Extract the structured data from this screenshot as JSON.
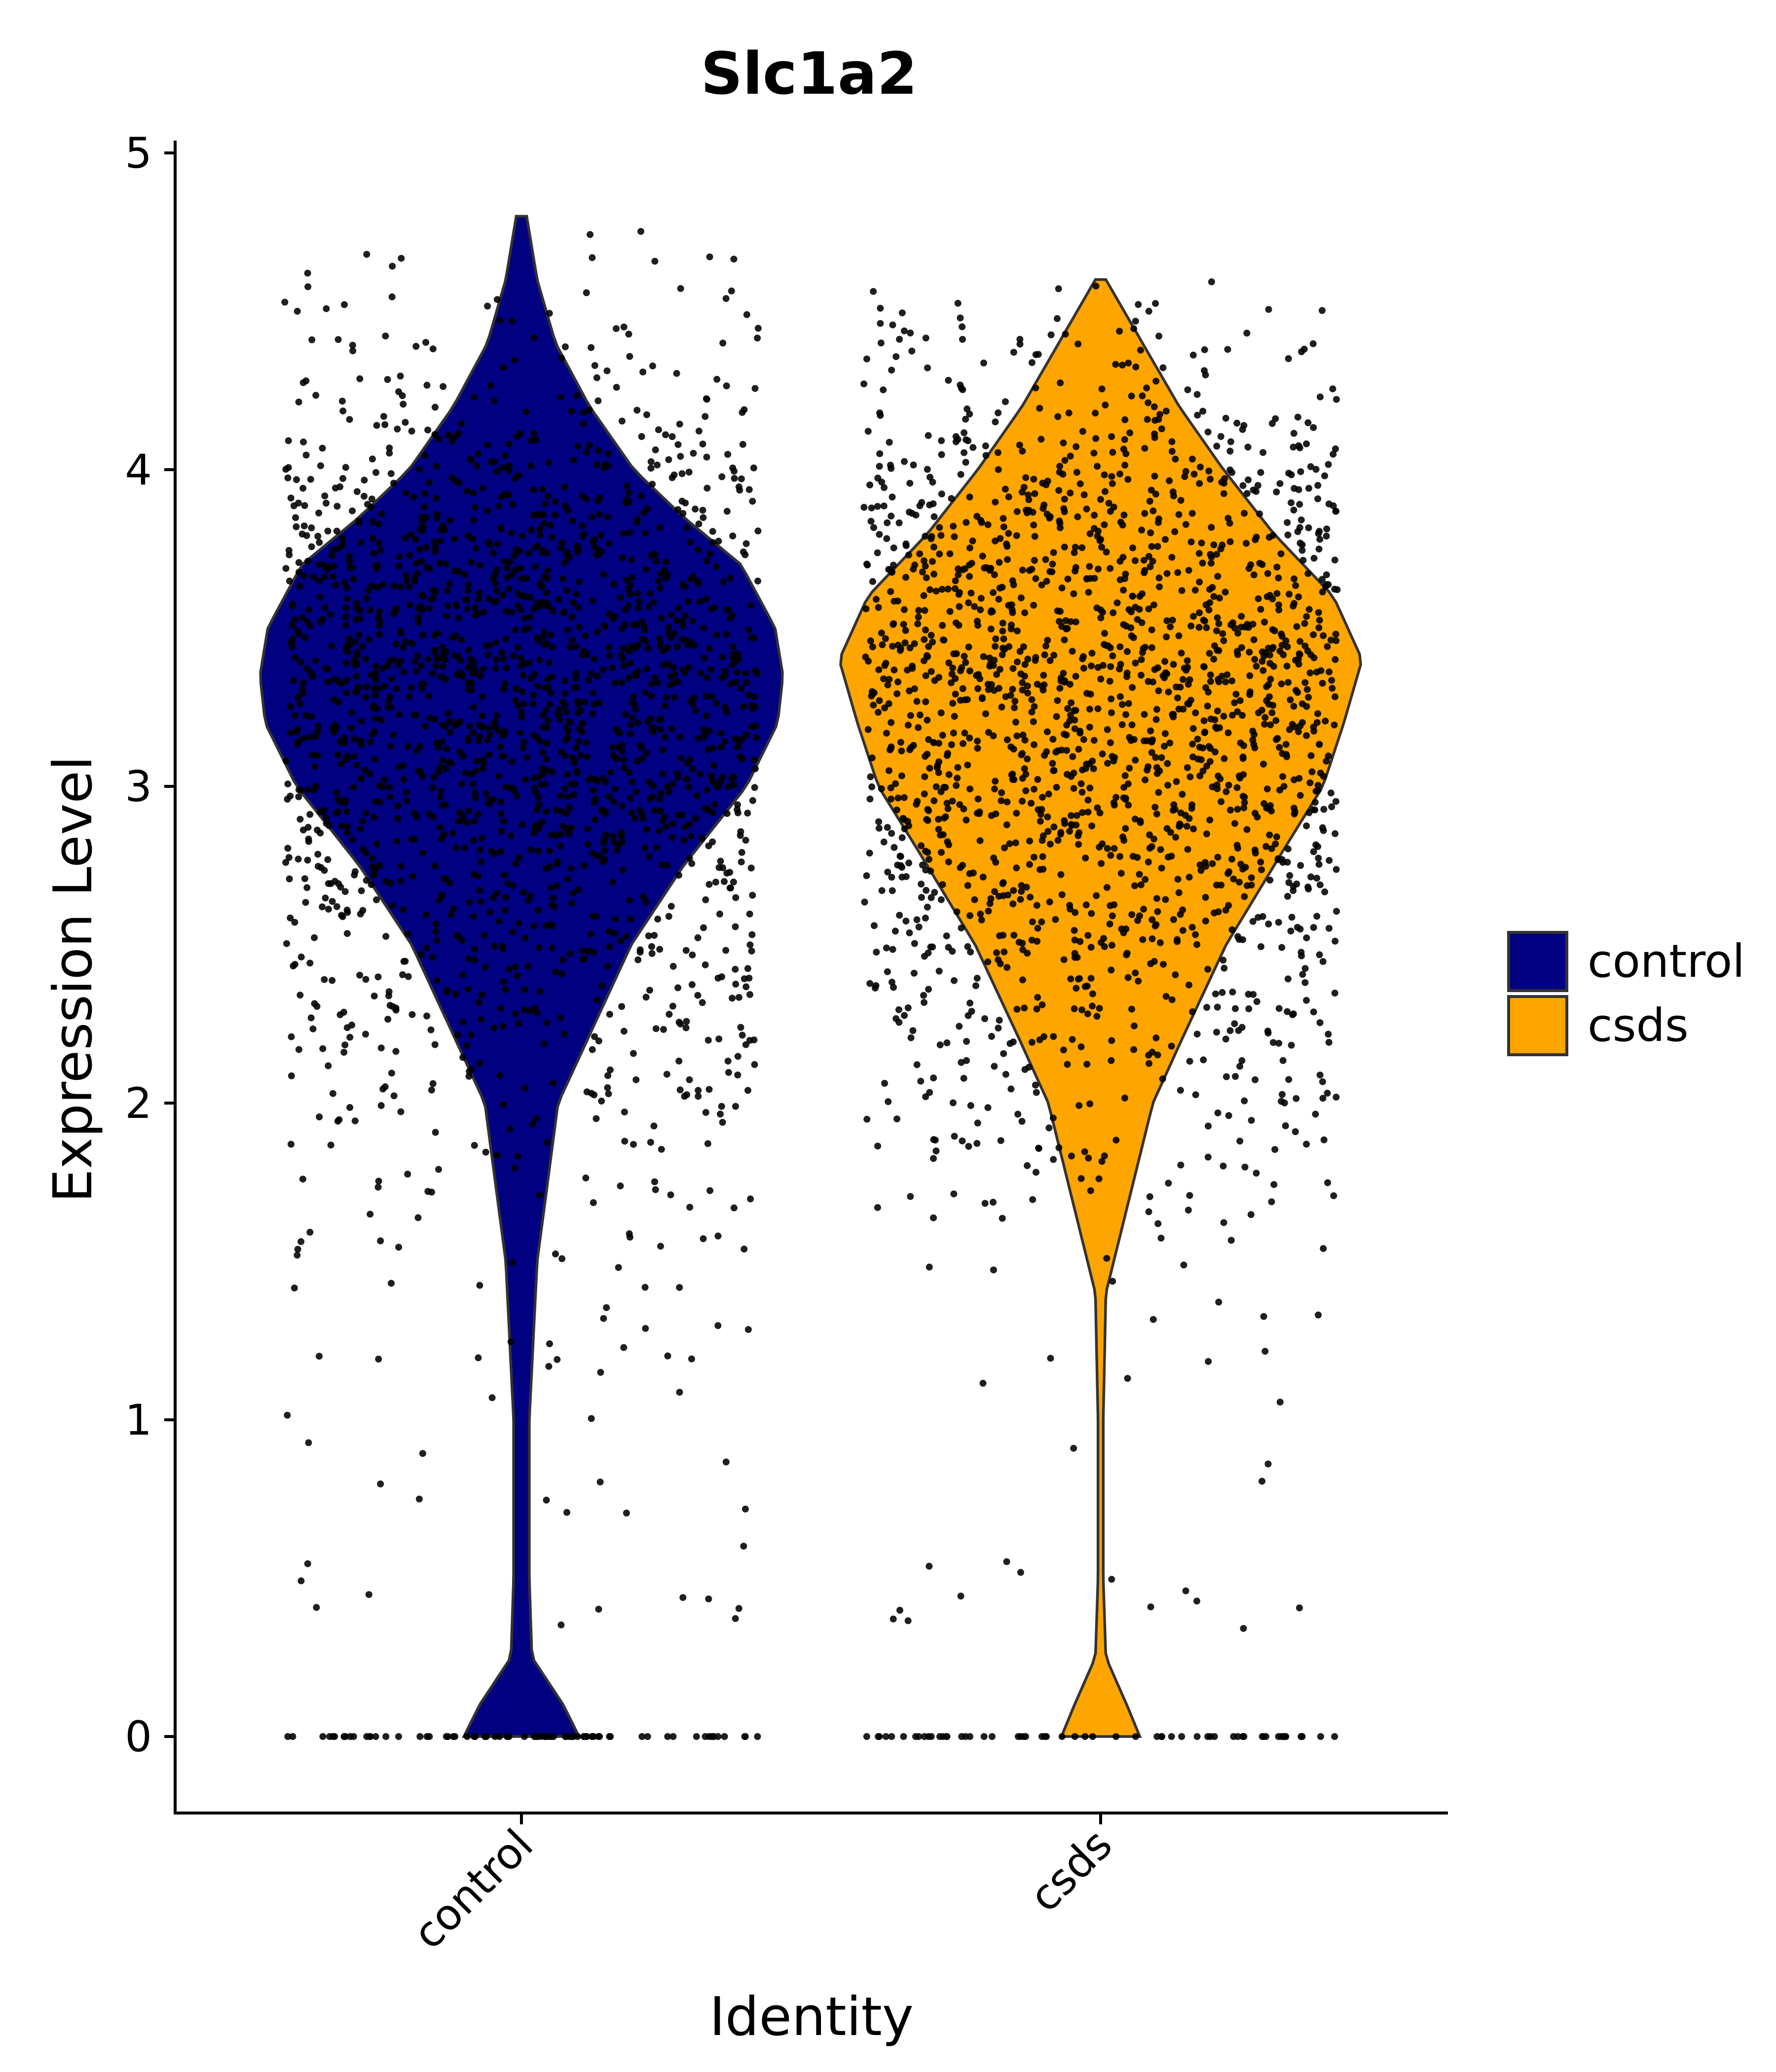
{
  "chart_data": {
    "type": "violin",
    "title": "Slc1a2",
    "xlabel": "Identity",
    "ylabel": "Expression Level",
    "ylim": [
      -0.24,
      5.04
    ],
    "yticks": [
      0,
      1,
      2,
      3,
      4,
      5
    ],
    "categories": [
      "control",
      "csds"
    ],
    "grid": false,
    "legend": {
      "position": "right",
      "entries": [
        {
          "label": "control",
          "color": "#000080"
        },
        {
          "label": "csds",
          "color": "#FFA500"
        }
      ]
    },
    "series": [
      {
        "name": "control",
        "color": "#000080",
        "max": 4.8,
        "density_profile": [
          [
            0.0,
            0.22
          ],
          [
            0.1,
            0.16
          ],
          [
            0.25,
            0.04
          ],
          [
            0.5,
            0.03
          ],
          [
            1.0,
            0.03
          ],
          [
            1.5,
            0.06
          ],
          [
            2.0,
            0.14
          ],
          [
            2.5,
            0.42
          ],
          [
            2.75,
            0.62
          ],
          [
            3.0,
            0.86
          ],
          [
            3.2,
            0.98
          ],
          [
            3.35,
            1.0
          ],
          [
            3.5,
            0.97
          ],
          [
            3.7,
            0.84
          ],
          [
            3.85,
            0.62
          ],
          [
            4.0,
            0.43
          ],
          [
            4.2,
            0.26
          ],
          [
            4.4,
            0.13
          ],
          [
            4.6,
            0.06
          ],
          [
            4.8,
            0.02
          ]
        ],
        "zero_fraction": 0.04,
        "n_points": 2000
      },
      {
        "name": "csds",
        "color": "#FFA500",
        "max": 4.6,
        "density_profile": [
          [
            0.0,
            0.15
          ],
          [
            0.1,
            0.1
          ],
          [
            0.25,
            0.02
          ],
          [
            0.5,
            0.01
          ],
          [
            1.0,
            0.01
          ],
          [
            1.4,
            0.02
          ],
          [
            1.6,
            0.08
          ],
          [
            2.0,
            0.2
          ],
          [
            2.2,
            0.31
          ],
          [
            2.5,
            0.48
          ],
          [
            2.8,
            0.7
          ],
          [
            3.0,
            0.85
          ],
          [
            3.2,
            0.93
          ],
          [
            3.4,
            1.0
          ],
          [
            3.6,
            0.89
          ],
          [
            3.8,
            0.66
          ],
          [
            4.0,
            0.47
          ],
          [
            4.2,
            0.3
          ],
          [
            4.4,
            0.16
          ],
          [
            4.6,
            0.02
          ]
        ],
        "zero_fraction": 0.03,
        "n_points": 2000
      }
    ]
  }
}
